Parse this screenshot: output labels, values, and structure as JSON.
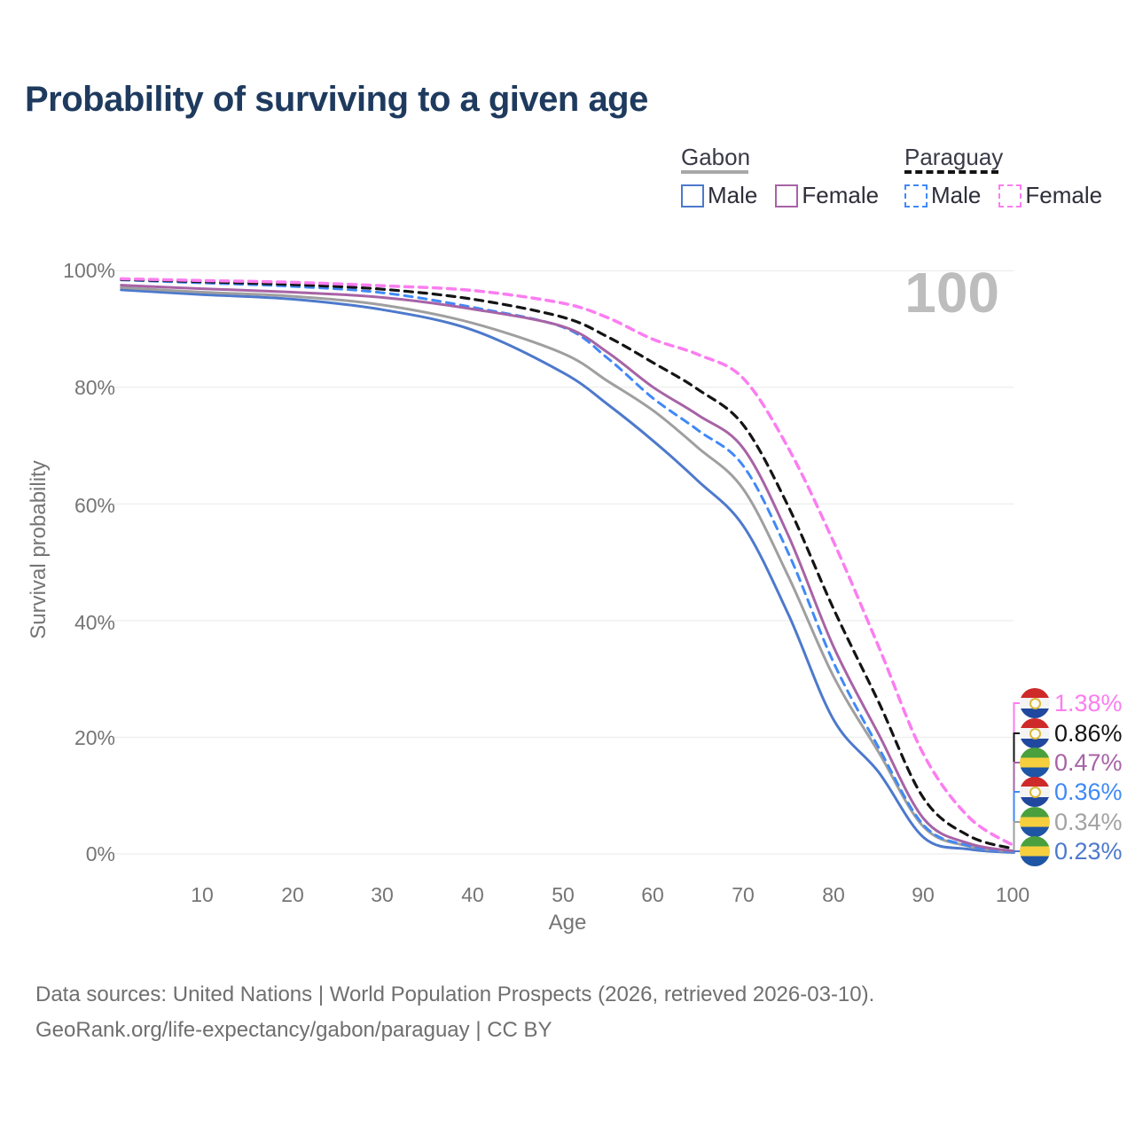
{
  "title": "Probability of surviving to a given age",
  "watermark": "100",
  "legend": {
    "groups": [
      {
        "name": "Gabon",
        "line_style": "solid",
        "underline_color": "#a8a8a8",
        "items": [
          {
            "label": "Male",
            "color": "#4d79cc",
            "dashed": false
          },
          {
            "label": "Female",
            "color": "#a763a6",
            "dashed": false
          }
        ]
      },
      {
        "name": "Paraguay",
        "line_style": "dashed",
        "underline_color": "#141414",
        "items": [
          {
            "label": "Male",
            "color": "#4089f7",
            "dashed": true
          },
          {
            "label": "Female",
            "color": "#fb7df0",
            "dashed": true
          }
        ]
      }
    ]
  },
  "y_axis": {
    "title": "Survival probability",
    "ticks": [
      "100%",
      "80%",
      "60%",
      "40%",
      "20%",
      "0%"
    ]
  },
  "x_axis": {
    "title": "Age",
    "ticks": [
      "10",
      "20",
      "30",
      "40",
      "50",
      "60",
      "70",
      "80",
      "90",
      "100"
    ]
  },
  "end_labels": [
    {
      "flag": "paraguay",
      "value": "1.38%",
      "color": "#fb7df0"
    },
    {
      "flag": "paraguay",
      "value": "0.86%",
      "color": "#141414"
    },
    {
      "flag": "gabon",
      "value": "0.47%",
      "color": "#a763a6"
    },
    {
      "flag": "paraguay",
      "value": "0.36%",
      "color": "#4089f7"
    },
    {
      "flag": "gabon",
      "value": "0.34%",
      "color": "#a2a2a2"
    },
    {
      "flag": "gabon",
      "value": "0.23%",
      "color": "#4d79cc"
    }
  ],
  "footer": {
    "line1": "Data sources: United Nations | World Population Prospects (2026, retrieved 2026-03-10).",
    "line2": "GeoRank.org/life-expectancy/gabon/paraguay | CC BY"
  },
  "chart_data": {
    "type": "line",
    "title": "Probability of surviving to a given age",
    "xlabel": "Age",
    "ylabel": "Survival probability",
    "xlim": [
      0,
      100
    ],
    "ylim": [
      0,
      100
    ],
    "grid": true,
    "grid_color": "#eaeaea",
    "legend_position": "top-right",
    "x": [
      1,
      10,
      20,
      30,
      40,
      50,
      55,
      60,
      65,
      70,
      75,
      80,
      85,
      90,
      95,
      100
    ],
    "series": [
      {
        "name": "Paraguay Female",
        "color": "#fb7df0",
        "dashed": true,
        "width": 3.5,
        "values": [
          98.6,
          98.3,
          98.0,
          97.4,
          96.6,
          94.4,
          91.9,
          88.2,
          85.6,
          81.5,
          69.5,
          53.5,
          35.5,
          17.0,
          6.3,
          1.38
        ]
      },
      {
        "name": "Paraguay",
        "color": "#141414",
        "dashed": true,
        "width": 3.2,
        "values": [
          98.5,
          98.1,
          97.6,
          96.8,
          95.1,
          92.0,
          88.6,
          84.2,
          79.6,
          73.5,
          59.5,
          42.0,
          26.0,
          9.5,
          3.1,
          0.86
        ]
      },
      {
        "name": "Gabon Female",
        "color": "#a763a6",
        "dashed": false,
        "width": 3,
        "values": [
          97.5,
          96.9,
          96.3,
          95.4,
          93.4,
          90.4,
          85.9,
          80.0,
          75.2,
          69.5,
          54.5,
          35.5,
          20.5,
          6.0,
          1.8,
          0.47
        ]
      },
      {
        "name": "Paraguay Male",
        "color": "#4089f7",
        "dashed": true,
        "width": 3,
        "values": [
          98.4,
          97.9,
          97.3,
          96.2,
          93.7,
          90.3,
          84.9,
          78.1,
          72.6,
          66.5,
          51.5,
          32.8,
          18.2,
          4.9,
          1.4,
          0.36
        ]
      },
      {
        "name": "Gabon",
        "color": "#9f9f9f",
        "dashed": false,
        "width": 3,
        "values": [
          97.1,
          96.3,
          95.6,
          94.1,
          91.0,
          85.8,
          81.0,
          76.0,
          69.6,
          62.5,
          47.5,
          30.4,
          17.4,
          4.6,
          1.3,
          0.34
        ]
      },
      {
        "name": "Gabon Male",
        "color": "#4d79cc",
        "dashed": false,
        "width": 3,
        "values": [
          96.7,
          95.9,
          95.1,
          93.3,
          89.8,
          82.5,
          77.0,
          70.8,
          63.9,
          56.2,
          41.0,
          23.0,
          14.0,
          2.8,
          0.8,
          0.23
        ]
      }
    ]
  }
}
